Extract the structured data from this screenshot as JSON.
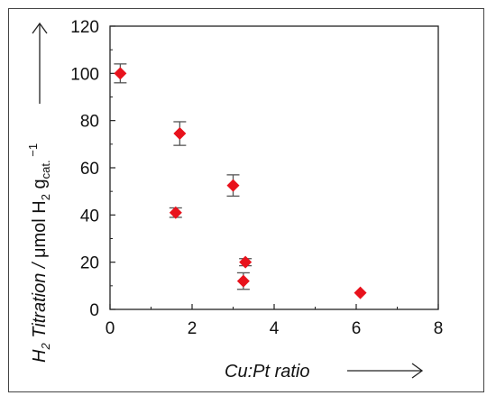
{
  "chart_data": {
    "type": "scatter",
    "xlabel": "Cu:Pt ratio",
    "ylabel_parts": {
      "h": "H",
      "h_sub": "2",
      "titration": " Titration / ",
      "unit_a": "μmol H",
      "unit_sub": "2",
      "unit_b": " g",
      "unit_sub2": "cat.",
      "unit_sup": " −1"
    },
    "xlim": [
      0,
      8
    ],
    "ylim": [
      0,
      120
    ],
    "xticks": [
      "0",
      "2",
      "4",
      "6",
      "8"
    ],
    "yticks": [
      "0",
      "20",
      "40",
      "60",
      "80",
      "100",
      "120"
    ],
    "marker": "diamond",
    "marker_color": "#e8121c",
    "grid": false,
    "points": [
      {
        "x": 0.25,
        "y": 100,
        "err": 4
      },
      {
        "x": 1.6,
        "y": 41,
        "err": 2
      },
      {
        "x": 1.7,
        "y": 74.5,
        "err": 5
      },
      {
        "x": 3.0,
        "y": 52.5,
        "err": 4.5
      },
      {
        "x": 3.25,
        "y": 12,
        "err": 3.5
      },
      {
        "x": 3.3,
        "y": 20,
        "err": 1.5
      },
      {
        "x": 6.1,
        "y": 7,
        "err": 0
      }
    ]
  }
}
